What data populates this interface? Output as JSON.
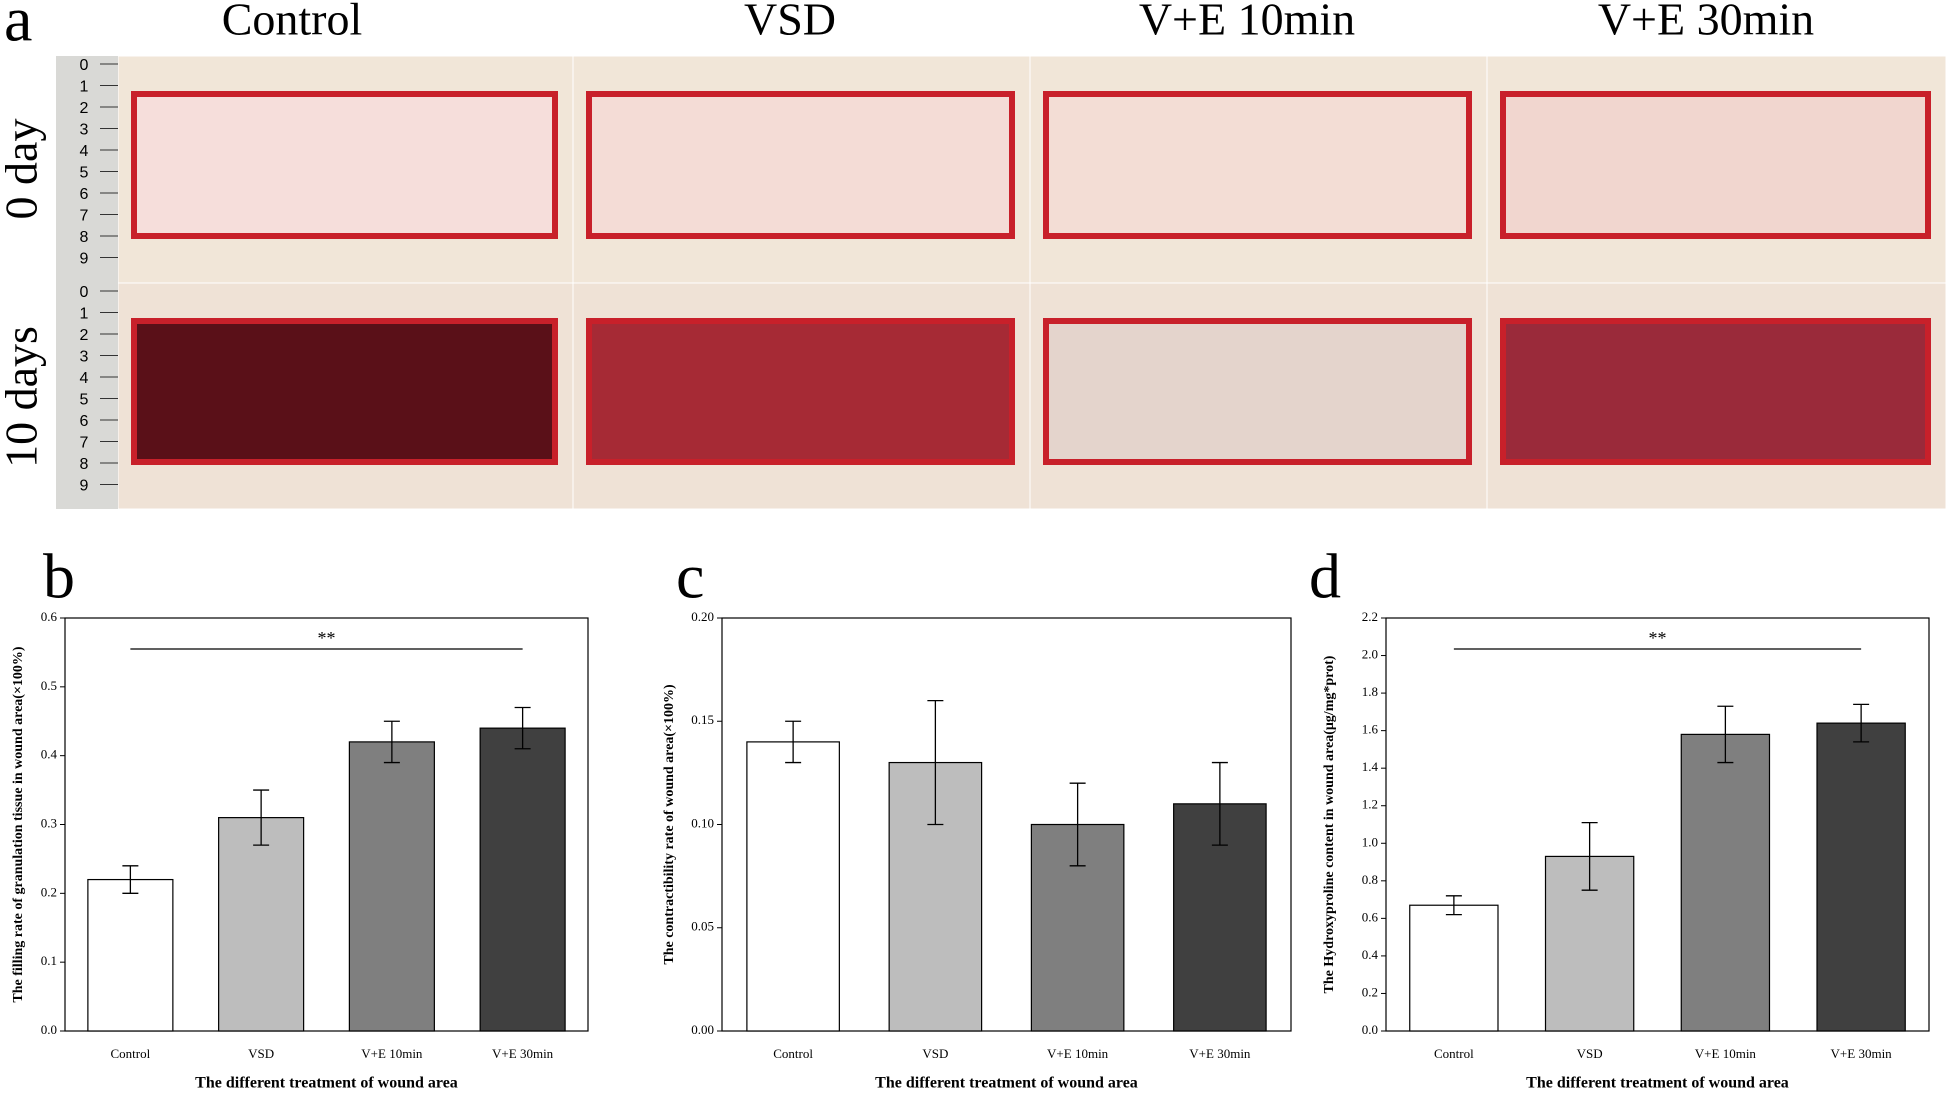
{
  "panel_a": {
    "letter": "a",
    "columns": [
      "Control",
      "VSD",
      "V+E 10min",
      "V+E 30min"
    ],
    "rows": [
      "0 day",
      "10 days"
    ],
    "ruler_labels": [
      "0",
      "1",
      "2",
      "3",
      "4",
      "5",
      "6",
      "7",
      "8",
      "9"
    ]
  },
  "chart_data": [
    {
      "type": "bar",
      "letter": "b",
      "ylabel": "The filling rate of granulation tissue in wound area(×100%)",
      "xlabel": "The different treatment of wound area",
      "categories": [
        "Control",
        "VSD",
        "V+E 10min",
        "V+E 30min"
      ],
      "values": [
        0.22,
        0.31,
        0.42,
        0.44
      ],
      "errors": [
        0.02,
        0.04,
        0.03,
        0.03
      ],
      "colors": [
        "#ffffff",
        "#bdbdbd",
        "#7f7f7f",
        "#404040"
      ],
      "ylim": [
        0,
        0.6
      ],
      "yticks": [
        {
          "value": 0,
          "label": "0.0"
        },
        0.1,
        0.2,
        0.3,
        0.4,
        0.5,
        0.6
      ],
      "annotation": "**"
    },
    {
      "type": "bar",
      "letter": "c",
      "ylabel": "The contractibility rate of  wound area(×100%)",
      "xlabel": "The different treatment of wound area",
      "categories": [
        "Control",
        "VSD",
        "V+E 10min",
        "V+E 30min"
      ],
      "values": [
        0.14,
        0.13,
        0.1,
        0.11
      ],
      "errors": [
        0.01,
        0.03,
        0.02,
        0.02
      ],
      "colors": [
        "#ffffff",
        "#bdbdbd",
        "#7f7f7f",
        "#404040"
      ],
      "ylim": [
        0,
        0.2
      ],
      "yticks": [
        {
          "value": 0,
          "label": "0.00"
        },
        0.05,
        {
          "value": 0.1,
          "label": "0.10"
        },
        0.15,
        {
          "value": 0.2,
          "label": "0.20"
        }
      ]
    },
    {
      "type": "bar",
      "letter": "d",
      "ylabel": "The Hydroxyproline content in wound area(μg/mg*prot)",
      "xlabel": "The different treatment of wound area",
      "categories": [
        "Control",
        "VSD",
        "V+E 10min",
        "V+E 30min"
      ],
      "values": [
        0.67,
        0.93,
        1.58,
        1.64
      ],
      "errors": [
        0.05,
        0.18,
        0.15,
        0.1
      ],
      "colors": [
        "#ffffff",
        "#bdbdbd",
        "#7f7f7f",
        "#404040"
      ],
      "ylim": [
        0,
        2.2
      ],
      "yticks": [
        {
          "value": 0,
          "label": "0.0"
        },
        0.2,
        0.4,
        0.6,
        0.8,
        {
          "value": 1,
          "label": "1.0"
        },
        1.2,
        1.4,
        1.6,
        1.8,
        {
          "value": 2,
          "label": "2.0"
        },
        2.2
      ],
      "annotation": "**"
    }
  ]
}
